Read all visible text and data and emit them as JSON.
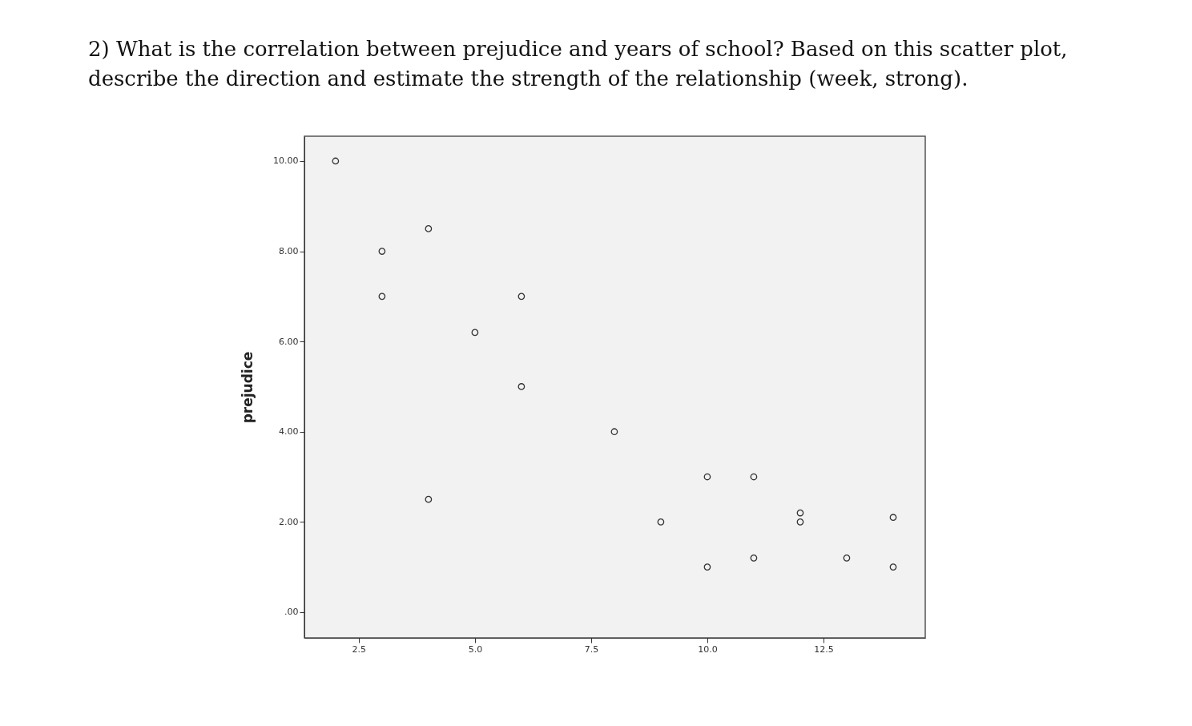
{
  "chart_data": {
    "type": "scatter",
    "title": "2) What is the correlation between prejudice and years of school? Based on this scatter plot,\ndescribe the direction and estimate the strength of the relationship (week, strong).",
    "ylabel": "prejudice",
    "series": [
      {
        "color": "#333333",
        "x": [
          2,
          3,
          3,
          4,
          4,
          5,
          6,
          6,
          8,
          9,
          10,
          10,
          11,
          11,
          12,
          12,
          13,
          14,
          14
        ],
        "values": [
          10,
          8,
          7,
          8.5,
          2.5,
          6.2,
          7,
          5,
          4,
          2,
          3,
          1,
          3,
          1.2,
          2.2,
          2,
          1.2,
          2.1,
          1
        ]
      }
    ],
    "xlim": [
      1.33,
      14.69
    ],
    "ylim": [
      -0.57,
      10.55
    ],
    "xticks": [
      {
        "value": 2.5,
        "label": "2.5"
      },
      {
        "value": 5,
        "label": "5.0"
      },
      {
        "value": 7.5,
        "label": "7.5"
      },
      {
        "value": 10,
        "label": "10.0"
      },
      {
        "value": 12.5,
        "label": "12.5"
      }
    ],
    "yticks": [
      {
        "value": 0,
        "label": ".00"
      },
      {
        "value": 2,
        "label": "2.00"
      },
      {
        "value": 4,
        "label": "4.00"
      },
      {
        "value": 6,
        "label": "6.00"
      },
      {
        "value": 8,
        "label": "8.00"
      },
      {
        "value": 10,
        "label": "10.00"
      }
    ],
    "grid": false,
    "marker": "circle"
  }
}
